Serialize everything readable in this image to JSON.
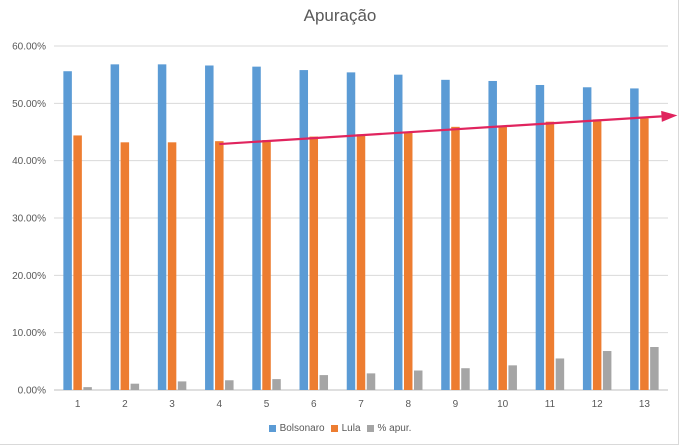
{
  "chart_data": {
    "type": "bar",
    "title": "Apuração",
    "xlabel": "",
    "ylabel": "",
    "categories": [
      "1",
      "2",
      "3",
      "4",
      "5",
      "6",
      "7",
      "8",
      "9",
      "10",
      "11",
      "12",
      "13"
    ],
    "ylim": [
      0,
      0.6
    ],
    "yticks": [
      "0.00%",
      "10.00%",
      "20.00%",
      "30.00%",
      "40.00%",
      "50.00%",
      "60.00%"
    ],
    "grid": true,
    "legend_position": "bottom",
    "series": [
      {
        "name": "Bolsonaro",
        "color": "#5b9bd5",
        "values": [
          0.556,
          0.568,
          0.568,
          0.566,
          0.564,
          0.558,
          0.554,
          0.55,
          0.541,
          0.539,
          0.532,
          0.528,
          0.526
        ]
      },
      {
        "name": "Lula",
        "color": "#ed7d31",
        "values": [
          0.444,
          0.432,
          0.432,
          0.434,
          0.436,
          0.442,
          0.446,
          0.45,
          0.459,
          0.461,
          0.468,
          0.472,
          0.474
        ]
      },
      {
        "name": "% apur.",
        "color": "#a5a5a5",
        "values": [
          0.005,
          0.011,
          0.015,
          0.017,
          0.019,
          0.026,
          0.029,
          0.034,
          0.038,
          0.043,
          0.055,
          0.068,
          0.075
        ]
      }
    ],
    "annotation": {
      "type": "arrow",
      "color": "#e0245e",
      "from": [
        4,
        0.429
      ],
      "to": [
        13.7,
        0.479
      ]
    }
  }
}
